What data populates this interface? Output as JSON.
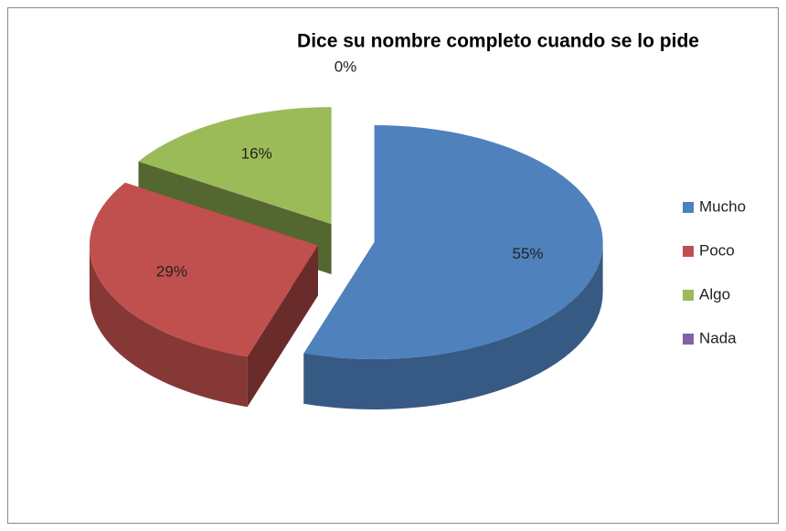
{
  "chart_data": {
    "type": "pie",
    "title": "Dice su nombre completo cuando se lo pide",
    "categories": [
      "Mucho",
      "Poco",
      "Algo",
      "Nada"
    ],
    "values": [
      55,
      29,
      16,
      0
    ],
    "value_labels": [
      "55%",
      "29%",
      "16%",
      "0%"
    ],
    "colors": [
      "#4f81bd",
      "#c0504d",
      "#9bbb59",
      "#8064a2"
    ],
    "legend": "right"
  }
}
